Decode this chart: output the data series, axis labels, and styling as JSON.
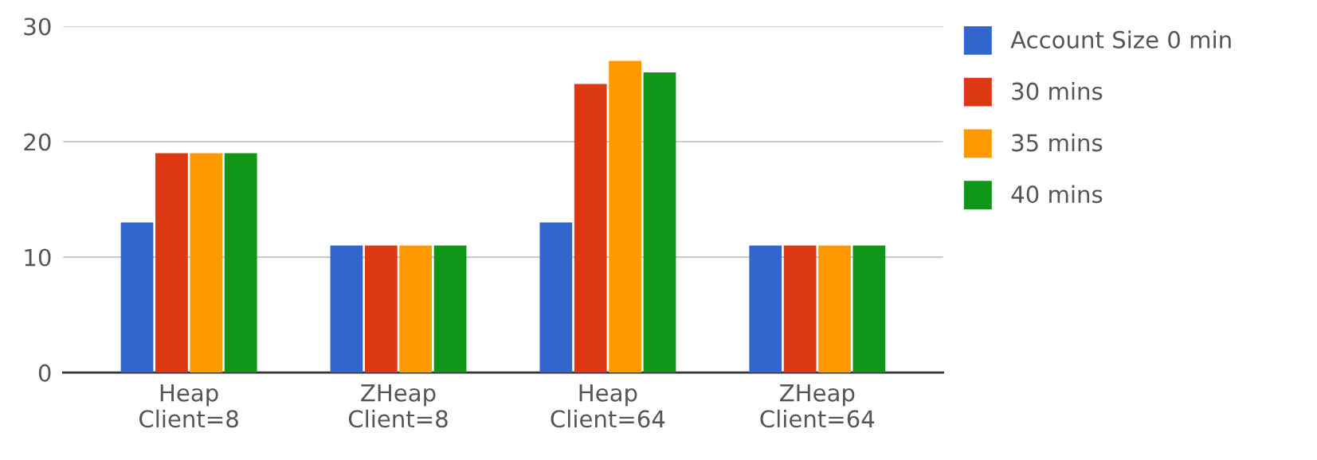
{
  "chart_data": {
    "type": "bar",
    "categories": [
      "Heap\nClient=8",
      "ZHeap\nClient=8",
      "Heap\nClient=64",
      "ZHeap\nClient=64"
    ],
    "series": [
      {
        "name": "Account Size 0 min",
        "color": "#3366cc",
        "values": [
          13,
          11,
          13,
          11
        ]
      },
      {
        "name": "30 mins",
        "color": "#dc3912",
        "values": [
          19,
          11,
          25,
          11
        ]
      },
      {
        "name": "35 mins",
        "color": "#ff9900",
        "values": [
          19,
          11,
          27,
          11
        ]
      },
      {
        "name": "40 mins",
        "color": "#109618",
        "values": [
          19,
          11,
          26,
          11
        ]
      }
    ],
    "ylim": [
      0,
      30
    ],
    "yticks": [
      0,
      10,
      20,
      30
    ],
    "grid": "y",
    "legend": "right"
  }
}
